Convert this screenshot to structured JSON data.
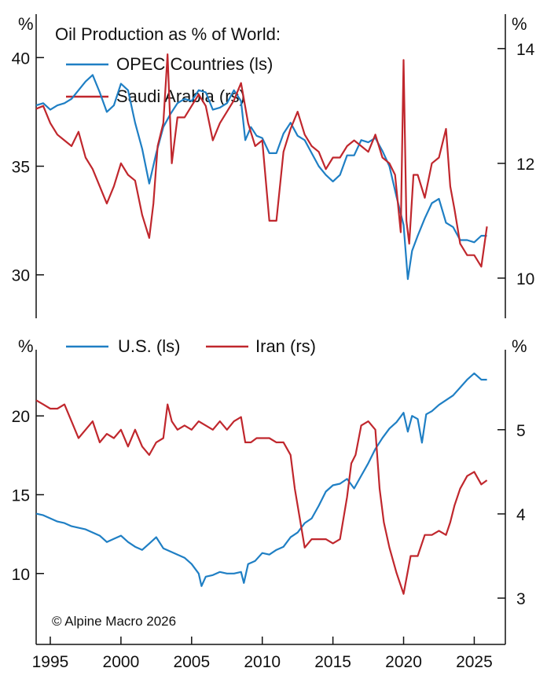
{
  "colors": {
    "blue": "#1f7fc4",
    "red": "#c0272d",
    "axis": "#111111"
  },
  "chart_data": [
    {
      "type": "line",
      "title": "Oil Production as % of World:",
      "left_unit": "%",
      "right_unit": "%",
      "xlim": [
        1994.0,
        2027.2
      ],
      "ylim_left": [
        28.0,
        42.0
      ],
      "ylim_right": [
        9.3,
        14.6
      ],
      "left_ticks": [
        30,
        35,
        40
      ],
      "right_ticks": [
        10,
        12,
        14
      ],
      "series": [
        {
          "name": "OPEC Countries (ls)",
          "axis": "left",
          "color": "#1f7fc4",
          "x": [
            1994.0,
            1994.5,
            1995.0,
            1995.5,
            1996.0,
            1996.5,
            1997.0,
            1997.5,
            1998.0,
            1998.5,
            1999.0,
            1999.5,
            2000.0,
            2000.5,
            2001.0,
            2001.5,
            2002.0,
            2002.5,
            2003.0,
            2003.5,
            2004.0,
            2004.5,
            2005.0,
            2005.5,
            2006.0,
            2006.5,
            2007.0,
            2007.5,
            2008.0,
            2008.5,
            2008.8,
            2009.2,
            2009.6,
            2010.0,
            2010.5,
            2011.0,
            2011.5,
            2012.0,
            2012.5,
            2013.0,
            2013.5,
            2014.0,
            2014.5,
            2015.0,
            2015.5,
            2016.0,
            2016.5,
            2017.0,
            2017.5,
            2018.0,
            2018.5,
            2019.0,
            2019.5,
            2020.0,
            2020.3,
            2020.6,
            2021.0,
            2021.5,
            2022.0,
            2022.5,
            2023.0,
            2023.5,
            2024.0,
            2024.5,
            2025.0,
            2025.5,
            2025.9
          ],
          "values": [
            37.8,
            37.9,
            37.6,
            37.8,
            37.9,
            38.1,
            38.5,
            38.9,
            39.2,
            38.4,
            37.5,
            37.8,
            38.8,
            38.5,
            37.0,
            35.8,
            34.2,
            35.6,
            36.8,
            37.4,
            37.9,
            38.1,
            38.0,
            38.5,
            38.4,
            37.6,
            37.7,
            37.9,
            38.5,
            38.0,
            36.2,
            36.8,
            36.4,
            36.3,
            35.6,
            35.6,
            36.5,
            37.0,
            36.4,
            36.2,
            35.6,
            35.0,
            34.6,
            34.3,
            34.6,
            35.5,
            35.5,
            36.2,
            36.1,
            36.3,
            35.7,
            35.0,
            33.6,
            32.3,
            29.8,
            31.1,
            31.8,
            32.6,
            33.3,
            33.5,
            32.4,
            32.2,
            31.6,
            31.6,
            31.5,
            31.8,
            31.8
          ]
        },
        {
          "name": "Saudi Arabia (rs)",
          "axis": "right",
          "color": "#c0272d",
          "x": [
            1994.0,
            1994.5,
            1995.0,
            1995.5,
            1996.0,
            1996.5,
            1997.0,
            1997.5,
            1998.0,
            1998.5,
            1999.0,
            1999.5,
            2000.0,
            2000.5,
            2001.0,
            2001.5,
            2002.0,
            2002.3,
            2002.6,
            2003.0,
            2003.3,
            2003.6,
            2004.0,
            2004.5,
            2005.0,
            2005.5,
            2006.0,
            2006.5,
            2007.0,
            2007.5,
            2008.0,
            2008.5,
            2009.0,
            2009.5,
            2010.0,
            2010.5,
            2011.0,
            2011.5,
            2012.0,
            2012.5,
            2013.0,
            2013.5,
            2014.0,
            2014.5,
            2015.0,
            2015.5,
            2016.0,
            2016.5,
            2017.0,
            2017.5,
            2018.0,
            2018.5,
            2019.0,
            2019.4,
            2019.8,
            2020.0,
            2020.2,
            2020.4,
            2020.7,
            2021.0,
            2021.5,
            2022.0,
            2022.5,
            2023.0,
            2023.3,
            2023.6,
            2024.0,
            2024.5,
            2025.0,
            2025.5,
            2025.9
          ],
          "values": [
            12.95,
            13.0,
            12.7,
            12.5,
            12.4,
            12.3,
            12.55,
            12.1,
            11.9,
            11.6,
            11.3,
            11.6,
            12.0,
            11.8,
            11.7,
            11.1,
            10.7,
            11.3,
            12.3,
            12.7,
            13.9,
            12.0,
            12.8,
            12.8,
            13.0,
            13.2,
            13.0,
            12.4,
            12.7,
            12.9,
            13.1,
            13.4,
            12.7,
            12.3,
            12.4,
            11.0,
            11.0,
            12.2,
            12.6,
            12.9,
            12.5,
            12.3,
            12.2,
            11.9,
            12.1,
            12.1,
            12.3,
            12.4,
            12.3,
            12.2,
            12.5,
            12.1,
            12.0,
            11.8,
            10.8,
            13.8,
            11.0,
            10.6,
            11.8,
            11.8,
            11.4,
            12.0,
            12.1,
            12.6,
            11.6,
            11.2,
            10.6,
            10.4,
            10.4,
            10.2,
            10.9
          ]
        }
      ],
      "legend": [
        "OPEC Countries (ls)",
        "Saudi Arabia (rs)"
      ]
    },
    {
      "type": "line",
      "left_unit": "%",
      "right_unit": "%",
      "xlim": [
        1994.0,
        2027.2
      ],
      "ylim_left": [
        5.5,
        24.2
      ],
      "ylim_right": [
        2.45,
        5.95
      ],
      "left_ticks": [
        10,
        15,
        20
      ],
      "right_ticks": [
        3,
        4,
        5
      ],
      "series": [
        {
          "name": "U.S. (ls)",
          "axis": "left",
          "color": "#1f7fc4",
          "x": [
            1994.0,
            1994.5,
            1995.0,
            1995.5,
            1996.0,
            1996.5,
            1997.0,
            1997.5,
            1998.0,
            1998.5,
            1999.0,
            1999.5,
            2000.0,
            2000.5,
            2001.0,
            2001.5,
            2002.0,
            2002.5,
            2003.0,
            2003.5,
            2004.0,
            2004.5,
            2005.0,
            2005.5,
            2005.7,
            2006.0,
            2006.5,
            2007.0,
            2007.5,
            2008.0,
            2008.5,
            2008.7,
            2009.0,
            2009.5,
            2010.0,
            2010.5,
            2011.0,
            2011.5,
            2012.0,
            2012.5,
            2013.0,
            2013.5,
            2014.0,
            2014.5,
            2015.0,
            2015.5,
            2016.0,
            2016.5,
            2017.0,
            2017.5,
            2018.0,
            2018.5,
            2019.0,
            2019.5,
            2020.0,
            2020.3,
            2020.6,
            2021.0,
            2021.3,
            2021.6,
            2022.0,
            2022.5,
            2023.0,
            2023.5,
            2024.0,
            2024.5,
            2025.0,
            2025.5,
            2025.9
          ],
          "values": [
            13.8,
            13.7,
            13.5,
            13.3,
            13.2,
            13.0,
            12.9,
            12.8,
            12.6,
            12.4,
            12.0,
            12.2,
            12.4,
            12.0,
            11.7,
            11.5,
            11.9,
            12.3,
            11.6,
            11.4,
            11.2,
            11.0,
            10.6,
            10.0,
            9.2,
            9.8,
            9.9,
            10.1,
            10.0,
            10.0,
            10.1,
            9.4,
            10.6,
            10.8,
            11.3,
            11.2,
            11.5,
            11.7,
            12.3,
            12.6,
            13.2,
            13.5,
            14.3,
            15.2,
            15.6,
            15.7,
            16.0,
            15.4,
            16.2,
            17.0,
            17.9,
            18.6,
            19.2,
            19.6,
            20.2,
            19.0,
            20.0,
            19.8,
            18.3,
            20.1,
            20.3,
            20.7,
            21.0,
            21.3,
            21.8,
            22.3,
            22.7,
            22.3,
            22.3
          ]
        },
        {
          "name": "Iran (rs)",
          "axis": "right",
          "color": "#c0272d",
          "x": [
            1994.0,
            1994.5,
            1995.0,
            1995.5,
            1996.0,
            1996.5,
            1997.0,
            1997.5,
            1998.0,
            1998.5,
            1999.0,
            1999.5,
            2000.0,
            2000.5,
            2001.0,
            2001.5,
            2002.0,
            2002.5,
            2003.0,
            2003.3,
            2003.6,
            2004.0,
            2004.5,
            2005.0,
            2005.5,
            2006.0,
            2006.5,
            2007.0,
            2007.5,
            2008.0,
            2008.5,
            2008.8,
            2009.2,
            2009.6,
            2010.0,
            2010.5,
            2011.0,
            2011.5,
            2012.0,
            2012.3,
            2012.6,
            2013.0,
            2013.5,
            2014.0,
            2014.5,
            2015.0,
            2015.5,
            2016.0,
            2016.3,
            2016.6,
            2017.0,
            2017.5,
            2018.0,
            2018.3,
            2018.6,
            2019.0,
            2019.5,
            2020.0,
            2020.5,
            2021.0,
            2021.5,
            2022.0,
            2022.5,
            2023.0,
            2023.3,
            2023.6,
            2024.0,
            2024.5,
            2025.0,
            2025.5,
            2025.9
          ],
          "values": [
            5.35,
            5.3,
            5.25,
            5.25,
            5.3,
            5.1,
            4.9,
            5.0,
            5.1,
            4.85,
            4.95,
            4.9,
            5.0,
            4.8,
            5.0,
            4.8,
            4.7,
            4.85,
            4.9,
            5.3,
            5.1,
            5.0,
            5.05,
            5.0,
            5.1,
            5.05,
            5.0,
            5.1,
            5.0,
            5.1,
            5.15,
            4.85,
            4.85,
            4.9,
            4.9,
            4.9,
            4.85,
            4.85,
            4.7,
            4.3,
            4.0,
            3.6,
            3.7,
            3.7,
            3.7,
            3.65,
            3.7,
            4.2,
            4.6,
            4.7,
            5.05,
            5.1,
            5.0,
            4.3,
            3.9,
            3.6,
            3.3,
            3.05,
            3.5,
            3.5,
            3.75,
            3.75,
            3.8,
            3.75,
            3.9,
            4.1,
            4.3,
            4.45,
            4.5,
            4.35,
            4.4
          ]
        }
      ],
      "legend": [
        "U.S. (ls)",
        "Iran (rs)"
      ]
    }
  ],
  "x_ticks": [
    "1995",
    "2000",
    "2005",
    "2010",
    "2015",
    "2020",
    "2025"
  ],
  "copyright": "© Alpine Macro 2026"
}
